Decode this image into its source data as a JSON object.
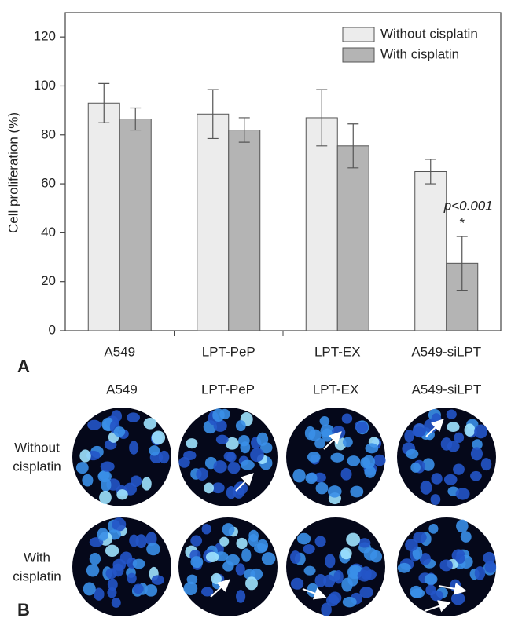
{
  "chart_data": {
    "type": "bar",
    "y_label": "Cell proliferation (%)",
    "categories": [
      "A549",
      "LPT-PeP",
      "LPT-EX",
      "A549-siLPT"
    ],
    "series": [
      {
        "name": "Without cisplatin",
        "color": "#ececec",
        "values": [
          93,
          88.5,
          87,
          65
        ],
        "errors": [
          8,
          10,
          11.5,
          5
        ]
      },
      {
        "name": "With cisplatin",
        "color": "#b4b4b4",
        "values": [
          86.5,
          82,
          75.5,
          27.5
        ],
        "errors": [
          4.5,
          5,
          9,
          11
        ]
      }
    ],
    "annotations": [
      "p<0.001",
      "*"
    ],
    "ylim": [
      0,
      130
    ],
    "yticks": [
      0,
      20,
      40,
      60,
      80,
      100,
      120
    ],
    "legend": "top-right"
  },
  "panel_labels": [
    "A",
    "B"
  ],
  "panel_b": {
    "columns": [
      "A549",
      "LPT-PeP",
      "LPT-EX",
      "A549-siLPT"
    ],
    "rows": [
      [
        "Without",
        "cisplatin"
      ],
      [
        "With",
        "cisplatin"
      ]
    ]
  }
}
